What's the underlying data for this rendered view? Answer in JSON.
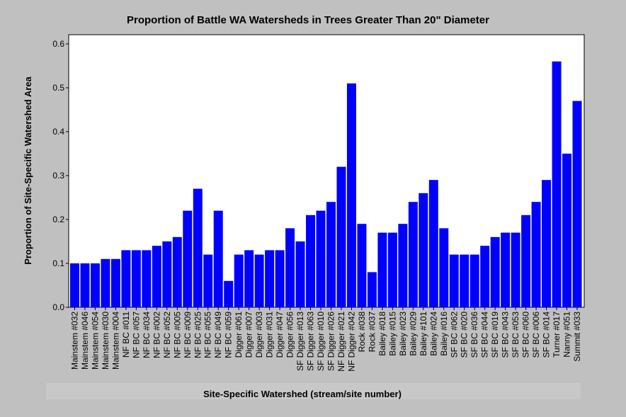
{
  "chart_data": {
    "type": "bar",
    "title": "Proportion of Battle WA Watersheds in Trees Greater Than 20\" Diameter",
    "xlabel": "Site-Specific Watershed (stream/site number)",
    "ylabel": "Proportion of Site-Specific Watershed Area",
    "ylim": [
      0,
      0.6
    ],
    "yticks": [
      "0.0",
      "0.1",
      "0.2",
      "0.3",
      "0.4",
      "0.5",
      "0.6"
    ],
    "grid": false,
    "bar_color": "#0000ff",
    "categories": [
      "Mainstem #032",
      "Mainstem #046",
      "Mainstem #054",
      "Mainstem #030",
      "Mainstem #004",
      "NF BC #011",
      "NF BC #057",
      "NF BC #034",
      "NF BC #002",
      "NF BC #052",
      "NF BC #005",
      "NF BC #009",
      "NF BC #025",
      "NF BC #055",
      "NF BC #049",
      "NF BC #059",
      "Digger #061",
      "Digger #007",
      "Digger #003",
      "Digger #031",
      "Digger #047",
      "Digger #056",
      "SF Digger #013",
      "SF Digger #063",
      "SF Digger #010",
      "SF Digger #026",
      "NF Digger #021",
      "NF Digger #042",
      "Rock #038",
      "Rock #037",
      "Bailey #018",
      "Bailey #015",
      "Bailey #023",
      "Bailey #029",
      "Bailey #101",
      "Bailey #024",
      "Bailey #016",
      "SF BC #062",
      "SF BC #020",
      "SF BC #036",
      "SF BC #044",
      "SF BC #019",
      "SF BC #043",
      "SF BC #053",
      "SF BC #060",
      "SF BC #006",
      "SF BC #014",
      "Turner #017",
      "Nanny #051",
      "Summit #033"
    ],
    "values": [
      0.1,
      0.1,
      0.1,
      0.11,
      0.11,
      0.13,
      0.13,
      0.13,
      0.14,
      0.15,
      0.16,
      0.22,
      0.27,
      0.12,
      0.22,
      0.06,
      0.12,
      0.13,
      0.12,
      0.13,
      0.13,
      0.18,
      0.15,
      0.21,
      0.22,
      0.24,
      0.32,
      0.51,
      0.19,
      0.08,
      0.17,
      0.17,
      0.19,
      0.24,
      0.26,
      0.29,
      0.18,
      0.12,
      0.12,
      0.12,
      0.14,
      0.16,
      0.17,
      0.17,
      0.21,
      0.24,
      0.29,
      0.56,
      0.35,
      0.47
    ]
  }
}
